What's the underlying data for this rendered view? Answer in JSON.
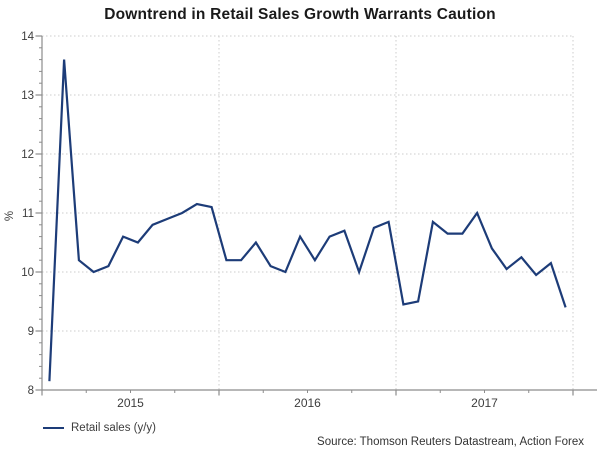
{
  "title": "Downtrend in Retail Sales Growth Warrants Caution",
  "legend_label": "Retail sales (y/y)",
  "source_text": "Source: Thomson Reuters Datastream, Action Forex",
  "colors": {
    "line": "#1d3c78",
    "grid": "#cccccc",
    "axis": "#8c8c8c",
    "tick_text": "#3d3d3d",
    "title_text": "#1a1a1a",
    "source_text_color": "#333333"
  },
  "chart_data": {
    "type": "line",
    "title": "Downtrend in Retail Sales Growth Warrants Caution",
    "xlabel": "",
    "ylabel": "%",
    "ylim": [
      8,
      14
    ],
    "yticks": [
      8,
      9,
      10,
      11,
      12,
      13,
      14
    ],
    "y_minor_tick_step": 0.2,
    "x_minor_ticks": "quarterly",
    "x_year_labels": [
      "2015",
      "2016",
      "2017"
    ],
    "grid": "dotted",
    "legend_position": "bottom-left",
    "categories": [
      "2015-01",
      "2015-02",
      "2015-03",
      "2015-04",
      "2015-05",
      "2015-06",
      "2015-07",
      "2015-08",
      "2015-09",
      "2015-10",
      "2015-11",
      "2015-12",
      "2016-01",
      "2016-02",
      "2016-03",
      "2016-04",
      "2016-05",
      "2016-06",
      "2016-07",
      "2016-08",
      "2016-09",
      "2016-10",
      "2016-11",
      "2016-12",
      "2017-01",
      "2017-02",
      "2017-03",
      "2017-04",
      "2017-05",
      "2017-06",
      "2017-07",
      "2017-08",
      "2017-09",
      "2017-10",
      "2017-11",
      "2017-12"
    ],
    "series": [
      {
        "name": "Retail sales (y/y)",
        "values": [
          8.15,
          13.6,
          10.2,
          10.0,
          10.1,
          10.6,
          10.5,
          10.8,
          10.9,
          11.0,
          11.15,
          11.1,
          10.2,
          10.2,
          10.5,
          10.1,
          10.0,
          10.6,
          10.2,
          10.6,
          10.7,
          10.0,
          10.75,
          10.85,
          9.45,
          9.5,
          10.85,
          10.65,
          10.65,
          11.0,
          10.4,
          10.05,
          10.25,
          9.95,
          10.15,
          9.4
        ]
      }
    ]
  }
}
